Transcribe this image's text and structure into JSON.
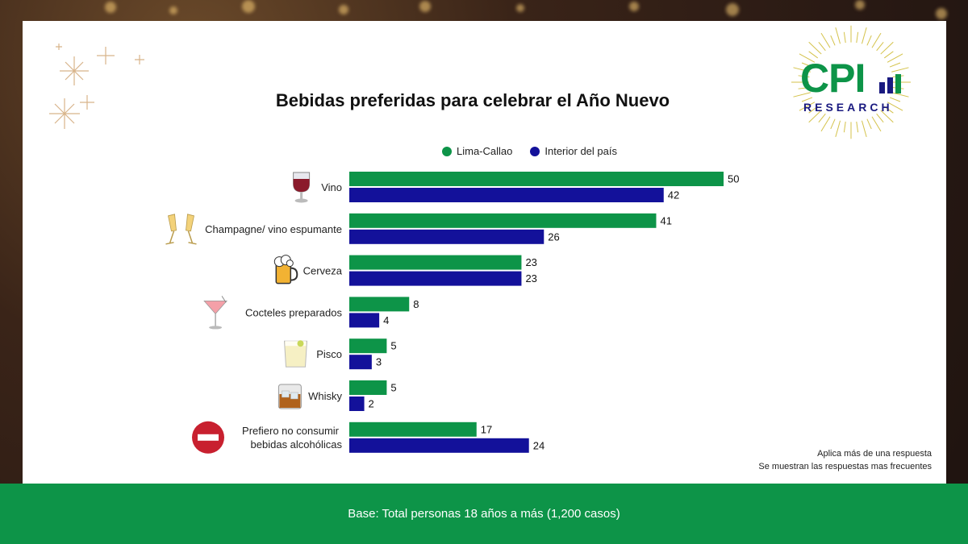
{
  "chart_data": {
    "type": "bar",
    "orientation": "horizontal",
    "title": "Bebidas preferidas para celebrar el Año Nuevo",
    "categories": [
      {
        "label_lines": [
          "Vino"
        ],
        "icon": "wine-glass-icon"
      },
      {
        "label_lines": [
          "Champagne/ vino espumante"
        ],
        "icon": "champagne-glasses-icon"
      },
      {
        "label_lines": [
          "Cerveza"
        ],
        "icon": "beer-mug-icon"
      },
      {
        "label_lines": [
          "Cocteles preparados"
        ],
        "icon": "cocktail-glass-icon"
      },
      {
        "label_lines": [
          "Pisco"
        ],
        "icon": "pisco-glass-icon"
      },
      {
        "label_lines": [
          "Whisky"
        ],
        "icon": "whisky-glass-icon"
      },
      {
        "label_lines": [
          "Prefiero no consumir",
          "bebidas alcohólicas"
        ],
        "icon": "no-entry-icon"
      }
    ],
    "series": [
      {
        "name": "Lima-Callao",
        "color": "#0d9448",
        "values": [
          50,
          41,
          23,
          8,
          5,
          5,
          17
        ]
      },
      {
        "name": "Interior del país",
        "color": "#13119a",
        "values": [
          42,
          26,
          23,
          4,
          3,
          2,
          24
        ]
      }
    ],
    "xlim": [
      0,
      50
    ],
    "grid": false,
    "legend_position": "top"
  },
  "notes": {
    "line1": "Aplica más de una respuesta",
    "line2": "Se muestran las respuestas mas frecuentes"
  },
  "footer": {
    "base_text": "Base: Total personas 18 años a más (1,200 casos)"
  },
  "logo": {
    "main_text": "CPI",
    "sub_text": "RESEARCH"
  },
  "colors": {
    "lima": "#0d9448",
    "interior": "#13119a",
    "footer_bg": "#0d9448"
  }
}
